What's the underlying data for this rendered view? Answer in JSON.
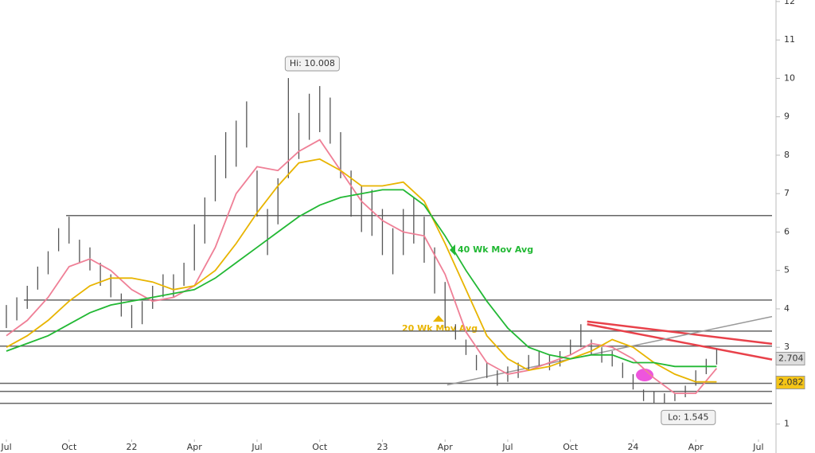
{
  "chart_data": {
    "type": "ohlc",
    "xlim": [
      -0.305,
      36.65
    ],
    "ylim": [
      0.6,
      12.04
    ],
    "yticks": [
      1,
      2,
      3,
      4,
      5,
      6,
      7,
      8,
      9,
      10,
      11,
      12
    ],
    "xticks": [
      {
        "value": 0,
        "label": "Jul"
      },
      {
        "value": 3,
        "label": "Oct"
      },
      {
        "value": 6,
        "label": "22"
      },
      {
        "value": 9,
        "label": "Apr"
      },
      {
        "value": 12,
        "label": "Jul"
      },
      {
        "value": 15,
        "label": "Oct"
      },
      {
        "value": 18,
        "label": "23"
      },
      {
        "value": 21,
        "label": "Apr"
      },
      {
        "value": 24,
        "label": "Jul"
      },
      {
        "value": 27,
        "label": "Oct"
      },
      {
        "value": 30,
        "label": "24"
      },
      {
        "value": 33,
        "label": "Apr"
      },
      {
        "value": 36,
        "label": "Jul"
      }
    ],
    "bar_color": "#555555",
    "x": [
      0,
      0.5,
      1,
      1.5,
      2,
      2.5,
      3,
      3.5,
      4,
      4.5,
      5,
      5.5,
      6,
      6.5,
      7,
      7.5,
      8,
      8.5,
      9,
      9.5,
      10,
      10.5,
      11,
      11.5,
      12,
      12.5,
      13,
      13.5,
      14,
      14.5,
      15,
      15.5,
      16,
      16.5,
      17,
      17.5,
      18,
      18.5,
      19,
      19.5,
      20,
      20.5,
      21,
      21.5,
      22,
      22.5,
      23,
      23.5,
      24,
      24.5,
      25,
      25.5,
      26,
      26.5,
      27,
      27.5,
      28,
      28.5,
      29,
      29.5,
      30,
      30.5,
      31,
      31.5,
      32,
      32.5,
      33,
      33.5,
      34
    ],
    "low": [
      3.5,
      3.7,
      4.0,
      4.5,
      4.9,
      5.5,
      5.7,
      5.2,
      5.0,
      4.6,
      4.3,
      3.8,
      3.5,
      3.6,
      4.0,
      4.3,
      4.3,
      4.6,
      5.0,
      5.7,
      6.8,
      7.4,
      7.7,
      8.2,
      6.4,
      5.4,
      6.2,
      7.4,
      7.9,
      8.4,
      8.6,
      8.3,
      7.4,
      6.4,
      6.0,
      5.9,
      5.4,
      4.9,
      5.4,
      5.7,
      5.2,
      4.4,
      3.5,
      3.2,
      2.8,
      2.4,
      2.2,
      2.0,
      2.1,
      2.2,
      2.4,
      2.5,
      2.4,
      2.5,
      2.8,
      3.0,
      2.8,
      2.6,
      2.5,
      2.2,
      1.9,
      1.6,
      1.55,
      1.545,
      1.6,
      1.7,
      2.0,
      2.3,
      2.55
    ],
    "high": [
      4.1,
      4.3,
      4.6,
      5.1,
      5.5,
      6.1,
      6.4,
      5.8,
      5.6,
      5.2,
      4.9,
      4.4,
      4.1,
      4.2,
      4.6,
      4.9,
      4.9,
      5.2,
      6.2,
      6.9,
      8.0,
      8.6,
      8.9,
      9.4,
      7.6,
      6.6,
      7.4,
      10.008,
      9.1,
      9.6,
      9.8,
      9.5,
      8.6,
      7.6,
      7.2,
      7.1,
      6.6,
      6.1,
      6.6,
      6.9,
      6.4,
      5.6,
      4.7,
      3.6,
      3.2,
      2.8,
      2.6,
      2.4,
      2.5,
      2.6,
      2.8,
      2.9,
      2.8,
      2.9,
      3.2,
      3.6,
      3.2,
      3.0,
      2.9,
      2.6,
      2.3,
      1.9,
      1.85,
      1.8,
      1.8,
      2.0,
      2.4,
      2.7,
      2.95
    ],
    "series": [
      {
        "color": "#ef7f96",
        "x": [
          0,
          1,
          2,
          3,
          4,
          5,
          6,
          7,
          8,
          9,
          10,
          11,
          12,
          13,
          14,
          15,
          16,
          17,
          18,
          19,
          20,
          21,
          22,
          23,
          24,
          25,
          26,
          27,
          28,
          29,
          30,
          31,
          32,
          33,
          34
        ],
        "values": [
          3.3,
          3.7,
          4.3,
          5.1,
          5.3,
          5.0,
          4.5,
          4.2,
          4.3,
          4.6,
          5.6,
          7.0,
          7.7,
          7.6,
          8.1,
          8.4,
          7.6,
          6.8,
          6.3,
          6.0,
          5.9,
          4.9,
          3.4,
          2.6,
          2.3,
          2.4,
          2.6,
          2.8,
          3.1,
          3.0,
          2.7,
          2.2,
          1.8,
          1.8,
          2.45
        ]
      },
      {
        "name": "20 Wk Mov Avg",
        "color": "#e8b400",
        "x": [
          0,
          1,
          2,
          3,
          4,
          5,
          6,
          7,
          8,
          9,
          10,
          11,
          12,
          13,
          14,
          15,
          16,
          17,
          18,
          19,
          20,
          21,
          22,
          23,
          24,
          25,
          26,
          27,
          28,
          29,
          30,
          31,
          32,
          33,
          34
        ],
        "values": [
          3.0,
          3.3,
          3.7,
          4.2,
          4.6,
          4.8,
          4.8,
          4.7,
          4.5,
          4.6,
          5.0,
          5.7,
          6.5,
          7.2,
          7.8,
          7.9,
          7.6,
          7.2,
          7.2,
          7.3,
          6.8,
          5.7,
          4.5,
          3.3,
          2.7,
          2.4,
          2.5,
          2.7,
          2.9,
          3.2,
          3.0,
          2.6,
          2.3,
          2.1,
          2.1
        ]
      },
      {
        "name": "40 Wk Mov Avg",
        "color": "#22b834",
        "x": [
          0,
          1,
          2,
          3,
          4,
          5,
          6,
          7,
          8,
          9,
          10,
          11,
          12,
          13,
          14,
          15,
          16,
          17,
          18,
          19,
          20,
          21,
          22,
          23,
          24,
          25,
          26,
          27,
          28,
          29,
          30,
          31,
          32,
          33,
          34
        ],
        "values": [
          2.9,
          3.1,
          3.3,
          3.6,
          3.9,
          4.1,
          4.2,
          4.3,
          4.4,
          4.5,
          4.8,
          5.2,
          5.6,
          6.0,
          6.4,
          6.7,
          6.9,
          7.0,
          7.1,
          7.1,
          6.7,
          5.9,
          5.0,
          4.2,
          3.5,
          3.0,
          2.8,
          2.7,
          2.8,
          2.8,
          2.6,
          2.6,
          2.5,
          2.5,
          2.5
        ]
      }
    ],
    "levels": [
      {
        "value": 6.43,
        "from": 2.86
      },
      {
        "value": 4.23,
        "from": 0.84
      },
      {
        "value": 3.42,
        "from": -0.305
      },
      {
        "value": 3.03,
        "from": -0.305
      },
      {
        "value": 2.06,
        "from": -0.305
      },
      {
        "value": 1.85,
        "from": -0.305
      },
      {
        "value": 1.54,
        "from": -0.305
      }
    ],
    "trendlines": [
      {
        "color": "#e8414a",
        "x": [
          27.8,
          36.65
        ],
        "y": [
          3.67,
          3.09
        ]
      },
      {
        "color": "#e8414a",
        "x": [
          27.8,
          36.65
        ],
        "y": [
          3.6,
          2.68
        ]
      },
      {
        "color": "#999999",
        "x": [
          21.1,
          36.65
        ],
        "y": [
          2.02,
          3.8
        ]
      }
    ],
    "annotations": [
      {
        "text": "Hi: 10.008"
      },
      {
        "text": "Lo: 1.545"
      }
    ],
    "price_labels": [
      {
        "value": 2.704,
        "color": "#dddddd"
      },
      {
        "value": 2.082,
        "color": "#f5c518"
      }
    ]
  }
}
